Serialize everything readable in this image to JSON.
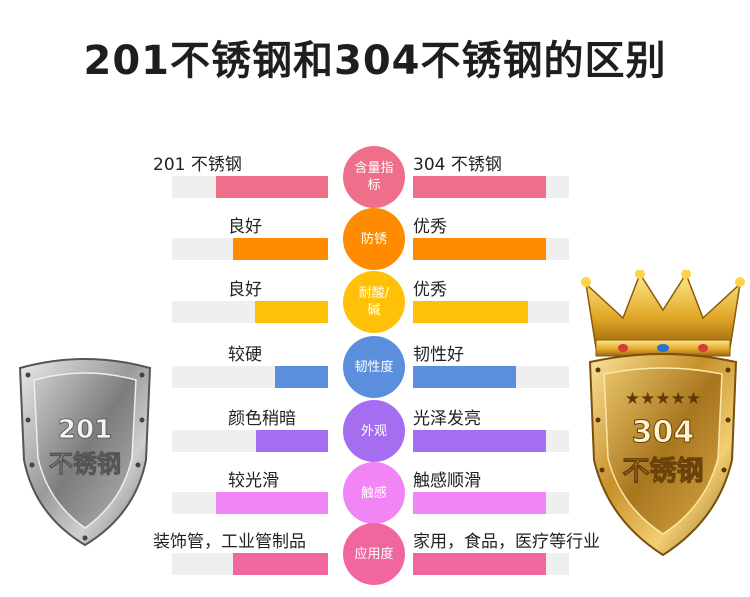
{
  "title": "201不锈钢和304不锈钢的区别",
  "rows": [
    {
      "category": "含量指标",
      "left_label": "201 不锈钢",
      "right_label": "304 不锈钢",
      "color": "#ef6f8a",
      "left_value": 0.72,
      "right_value": 0.85
    },
    {
      "category": "防锈",
      "left_label": "良好",
      "right_label": "优秀",
      "color": "#ff8c00",
      "left_value": 0.61,
      "right_value": 0.85
    },
    {
      "category": "耐酸/碱",
      "left_label": "良好",
      "right_label": "优秀",
      "color": "#ffc107",
      "left_value": 0.47,
      "right_value": 0.74
    },
    {
      "category": "韧性度",
      "left_label": "较硬",
      "right_label": "韧性好",
      "color": "#5b8fde",
      "left_value": 0.34,
      "right_value": 0.66
    },
    {
      "category": "外观",
      "left_label": "颜色稍暗",
      "right_label": "光泽发亮",
      "color": "#a56ef0",
      "left_value": 0.46,
      "right_value": 0.85
    },
    {
      "category": "触感",
      "left_label": "较光滑",
      "right_label": "触感顺滑",
      "color": "#f285f5",
      "left_value": 0.72,
      "right_value": 0.85
    },
    {
      "category": "应用度",
      "left_label": "装饰管，工业管制品",
      "right_label": "家用，食品，医疗等行业",
      "color": "#f2669f",
      "left_value": 0.61,
      "right_value": 0.85
    }
  ],
  "badges": {
    "left_number": "201",
    "left_text": "不锈钢",
    "right_number": "304",
    "right_text": "不锈钢",
    "right_stars": "★★★★★"
  },
  "colors": {
    "track": "#efefef",
    "silver": "#b8b8b8",
    "gold": "#d4a53a"
  }
}
